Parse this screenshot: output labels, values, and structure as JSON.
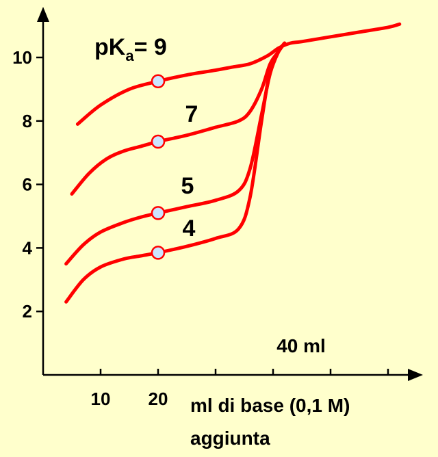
{
  "chart_data": {
    "type": "line",
    "title": "",
    "xlabel_line1": "ml di base (0,1 M)",
    "xlabel_line2": "aggiunta",
    "ylabel": "",
    "xlim": [
      0,
      60
    ],
    "ylim": [
      0,
      11
    ],
    "x_tick_values": [
      10,
      20,
      30,
      40,
      50,
      60
    ],
    "x_tick_labels": [
      "10",
      "20"
    ],
    "y_ticks": [
      2,
      4,
      6,
      8,
      10
    ],
    "equivalence_label": "40 ml",
    "pka_prefix": "pK",
    "pka_subscript": "a",
    "pka_suffix": "= 9",
    "series": [
      {
        "name": "9",
        "x": [
          6,
          10,
          15,
          20,
          25,
          30,
          33,
          36,
          39,
          41,
          43,
          45,
          50,
          55,
          60,
          62
        ],
        "y": [
          7.9,
          8.5,
          9.0,
          9.25,
          9.45,
          9.6,
          9.7,
          9.8,
          10.05,
          10.3,
          10.45,
          10.5,
          10.65,
          10.8,
          10.95,
          11.05
        ],
        "marker_x": 20,
        "marker_y": 9.25
      },
      {
        "name": "7",
        "x": [
          5,
          8,
          11,
          14,
          17,
          20,
          25,
          30,
          34,
          36,
          38,
          39.5,
          41,
          42
        ],
        "y": [
          5.7,
          6.35,
          6.8,
          7.05,
          7.2,
          7.35,
          7.55,
          7.8,
          8.0,
          8.3,
          9.0,
          9.8,
          10.2,
          10.45
        ],
        "marker_x": 20,
        "marker_y": 7.35
      },
      {
        "name": "5",
        "x": [
          4,
          7,
          10,
          14,
          17,
          20,
          25,
          30,
          34,
          36,
          38,
          39.5,
          41,
          42
        ],
        "y": [
          3.5,
          4.1,
          4.5,
          4.8,
          4.97,
          5.1,
          5.3,
          5.5,
          5.8,
          6.5,
          8.2,
          9.5,
          10.2,
          10.45
        ],
        "marker_x": 20,
        "marker_y": 5.1
      },
      {
        "name": "4",
        "x": [
          4,
          7,
          10,
          14,
          17,
          20,
          25,
          30,
          34,
          36,
          38,
          39.5,
          41,
          42
        ],
        "y": [
          2.3,
          3.0,
          3.4,
          3.65,
          3.75,
          3.85,
          4.05,
          4.3,
          4.6,
          5.6,
          8.0,
          9.6,
          10.2,
          10.45
        ],
        "marker_x": 20,
        "marker_y": 3.85
      }
    ],
    "colors": {
      "background": "#ffffcc",
      "curve": "#ff0000",
      "marker_fill": "#cce5ff",
      "axis": "#000000"
    }
  }
}
